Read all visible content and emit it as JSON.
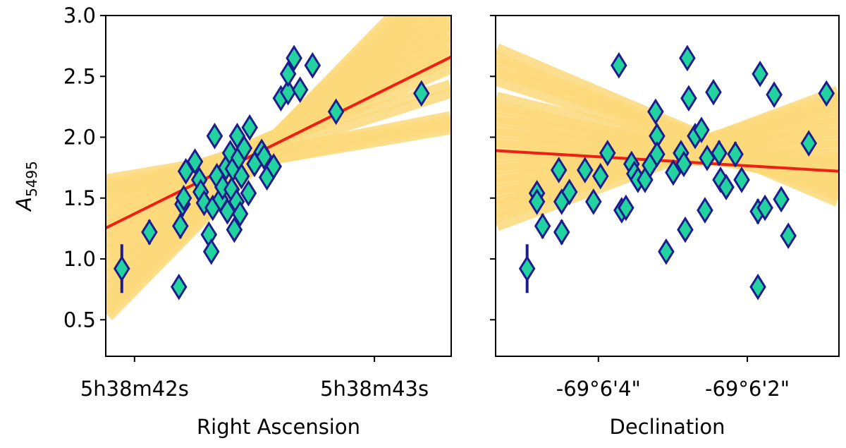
{
  "chart_data": [
    {
      "type": "scatter",
      "xlabel": "Right Ascension",
      "ylabel": "A",
      "ylabel_sub": "5495",
      "xlim": [
        41.88,
        43.32
      ],
      "xticks": [
        {
          "value": 42,
          "label": "5h38m42s"
        },
        {
          "value": 43,
          "label": "5h38m43s"
        }
      ],
      "ylim": [
        0.2,
        3.0
      ],
      "yticks": [
        0.5,
        {
          "value": 1.0,
          "label": "1.0"
        },
        1.5,
        {
          "value": 2.0,
          "label": "2.0"
        },
        2.5,
        {
          "value": 3.0,
          "label": "3.0"
        }
      ],
      "show_ytick_labels": true,
      "color": "#22d3a0",
      "edgecolor": "#1c1c8e",
      "x": [
        41.947,
        42.062,
        42.185,
        42.191,
        42.2,
        42.205,
        42.214,
        42.252,
        42.27,
        42.276,
        42.29,
        42.31,
        42.32,
        42.326,
        42.334,
        42.343,
        42.358,
        42.367,
        42.381,
        42.387,
        42.399,
        42.405,
        42.41,
        42.416,
        42.425,
        42.428,
        42.434,
        42.44,
        42.446,
        42.457,
        42.475,
        42.48,
        42.5,
        42.53,
        42.54,
        42.552,
        42.58,
        42.61,
        42.64,
        42.64,
        42.665,
        42.69,
        42.742,
        42.84,
        43.196
      ],
      "values": [
        0.92,
        1.22,
        0.77,
        1.27,
        1.45,
        1.5,
        1.72,
        1.8,
        1.65,
        1.55,
        1.46,
        1.2,
        1.06,
        1.42,
        2.01,
        1.68,
        1.49,
        1.59,
        1.75,
        1.39,
        1.87,
        1.57,
        1.74,
        1.24,
        1.47,
        2.01,
        1.83,
        1.37,
        1.68,
        1.91,
        1.54,
        2.08,
        1.78,
        1.88,
        1.84,
        1.67,
        1.76,
        2.32,
        2.37,
        2.52,
        2.65,
        2.39,
        2.59,
        2.21,
        2.36
      ],
      "errors": [
        0.2,
        0.1,
        0.05,
        0.1,
        0.1,
        0.06,
        0.06,
        0.05,
        0.06,
        0.05,
        0.06,
        0.06,
        0.08,
        0.06,
        0.05,
        0.06,
        0.06,
        0.05,
        0.06,
        0.05,
        0.06,
        0.05,
        0.06,
        0.05,
        0.06,
        0.05,
        0.06,
        0.05,
        0.06,
        0.05,
        0.06,
        0.05,
        0.08,
        0.06,
        0.1,
        0.06,
        0.05,
        0.05,
        0.05,
        0.05,
        0.05,
        0.05,
        0.05,
        0.05,
        0.05
      ],
      "fit": {
        "color": "#ee2016",
        "values": [
          1.254,
          2.66
        ]
      },
      "fit_samples": {
        "color": "#fcd97a",
        "values": [
          [
            1.62,
            2.1
          ],
          [
            1.58,
            2.14
          ],
          [
            1.5,
            2.4
          ],
          [
            1.4,
            2.6
          ],
          [
            1.3,
            2.7
          ],
          [
            1.2,
            2.8
          ],
          [
            1.1,
            2.9
          ],
          [
            1.0,
            3.0
          ],
          [
            0.9,
            3.1
          ],
          [
            0.8,
            3.2
          ],
          [
            0.7,
            3.3
          ],
          [
            0.6,
            3.4
          ],
          [
            0.55,
            3.45
          ]
        ]
      }
    },
    {
      "type": "scatter",
      "xlabel": "Declination",
      "xlim": [
        5.38,
        0.77
      ],
      "xticks": [
        {
          "value": 4,
          "label": "-69°6'4\""
        },
        {
          "value": 2,
          "label": "-69°6'2\""
        }
      ],
      "ylim": [
        0.2,
        3.0
      ],
      "yticks": [
        0.5,
        1,
        1.5,
        2,
        2.5,
        3
      ],
      "show_ytick_labels": false,
      "color": "#22d3a0",
      "edgecolor": "#1c1c8e",
      "x": [
        4.957,
        4.749,
        4.825,
        4.825,
        4.531,
        4.493,
        4.493,
        4.389,
        4.18,
        4.066,
        3.972,
        3.877,
        3.725,
        3.687,
        3.63,
        3.555,
        3.517,
        3.469,
        3.374,
        3.308,
        3.232,
        3.213,
        3.213,
        3.09,
        2.995,
        2.891,
        2.853,
        2.834,
        2.806,
        2.787,
        2.701,
        2.616,
        2.569,
        2.54,
        2.455,
        2.379,
        2.36,
        2.284,
        2.161,
        2.076,
        1.858,
        1.858,
        1.829,
        1.763,
        1.64,
        1.545,
        1.45,
        1.175,
        0.938
      ],
      "values": [
        0.92,
        1.27,
        1.54,
        1.47,
        1.73,
        1.22,
        1.47,
        1.55,
        1.73,
        1.47,
        1.68,
        1.87,
        2.59,
        1.4,
        1.42,
        1.78,
        1.7,
        1.65,
        1.65,
        1.77,
        2.21,
        2.01,
        1.86,
        1.06,
        1.71,
        1.87,
        1.78,
        1.24,
        2.65,
        2.32,
        2.01,
        2.06,
        1.4,
        1.83,
        2.37,
        1.87,
        1.65,
        1.59,
        1.86,
        1.65,
        0.77,
        1.39,
        2.52,
        1.42,
        2.35,
        1.49,
        1.19,
        1.95,
        2.36
      ],
      "errors": [
        0.2,
        0.1,
        0.06,
        0.06,
        0.06,
        0.1,
        0.06,
        0.05,
        0.06,
        0.05,
        0.06,
        0.05,
        0.05,
        0.05,
        0.05,
        0.06,
        0.06,
        0.05,
        0.05,
        0.05,
        0.05,
        0.05,
        0.05,
        0.08,
        0.06,
        0.05,
        0.06,
        0.05,
        0.05,
        0.05,
        0.05,
        0.05,
        0.05,
        0.06,
        0.05,
        0.1,
        0.05,
        0.05,
        0.1,
        0.06,
        0.05,
        0.1,
        0.05,
        0.05,
        0.05,
        0.05,
        0.05,
        0.05,
        0.05
      ],
      "fit": {
        "color": "#ee2016",
        "values": [
          1.89,
          1.72
        ]
      },
      "fit_samples": {
        "color": "#fcd97a",
        "values": [
          [
            2.7,
            1.5
          ],
          [
            2.6,
            1.55
          ],
          [
            2.5,
            1.6
          ],
          [
            2.3,
            1.62
          ],
          [
            2.2,
            1.65
          ],
          [
            2.1,
            1.7
          ],
          [
            2.0,
            1.75
          ],
          [
            1.9,
            1.8
          ],
          [
            1.8,
            1.9
          ],
          [
            1.7,
            2.0
          ],
          [
            1.6,
            2.1
          ],
          [
            1.5,
            2.2
          ],
          [
            1.4,
            2.3
          ],
          [
            1.3,
            2.35
          ]
        ]
      }
    }
  ]
}
